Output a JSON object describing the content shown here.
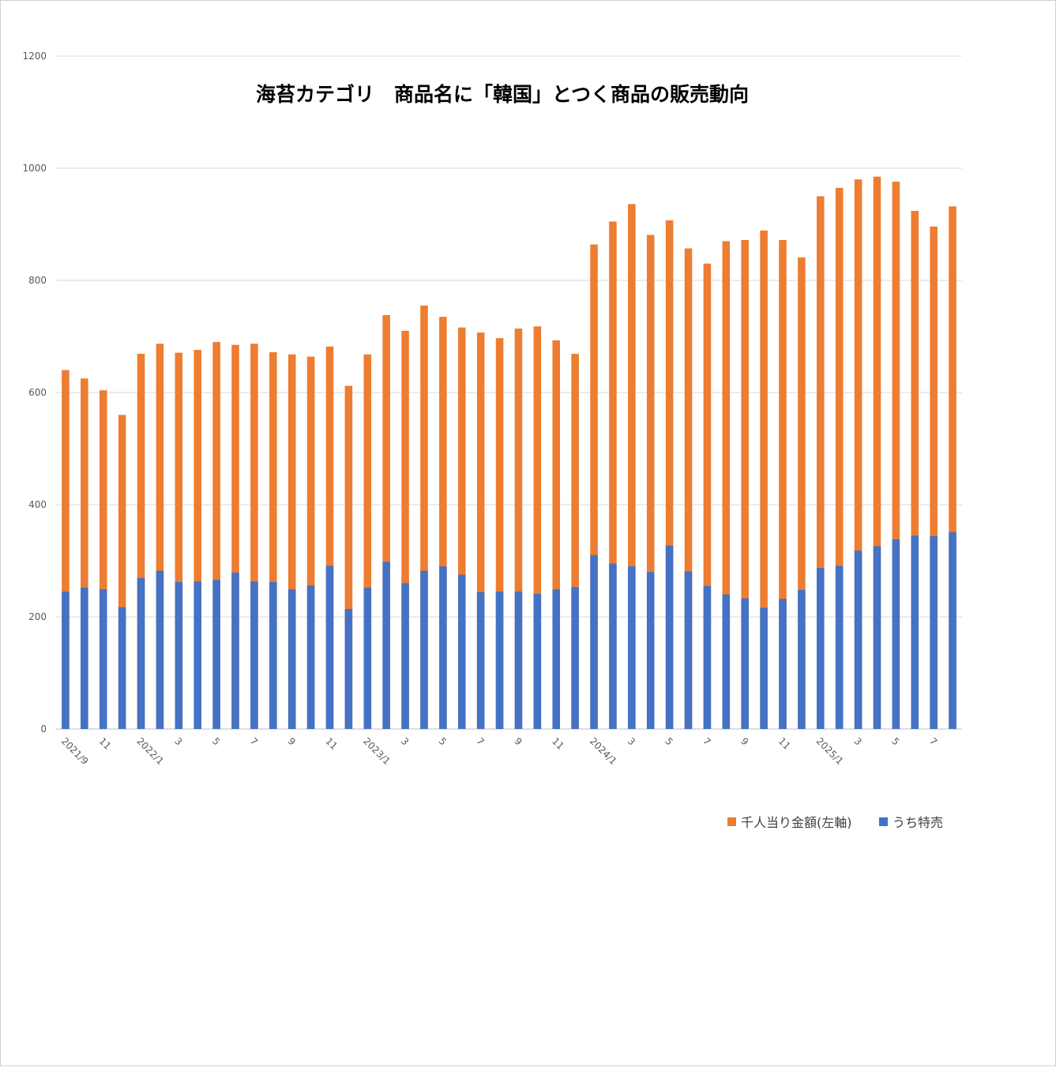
{
  "chart_data": {
    "type": "bar",
    "stacked": false,
    "overlap": true,
    "title": "海苔カテゴリ　商品名に「韓国」とつく商品の販売動向",
    "ylim": [
      0,
      1200
    ],
    "yticks": [
      0,
      200,
      400,
      600,
      800,
      1000,
      1200
    ],
    "grid": true,
    "legend_position": "bottom-right",
    "colors": {
      "total": "#ED7D31",
      "special": "#4472C4",
      "grid": "#d9d9d9",
      "axis": "#bfbfbf"
    },
    "categories": [
      "2021/9",
      "",
      "11",
      "",
      "2022/1",
      "",
      "3",
      "",
      "5",
      "",
      "7",
      "",
      "9",
      "",
      "11",
      "",
      "2023/1",
      "",
      "3",
      "",
      "5",
      "",
      "7",
      "",
      "9",
      "",
      "11",
      "",
      "2024/1",
      "",
      "3",
      "",
      "5",
      "",
      "7",
      "",
      "9",
      "",
      "11",
      "",
      "2025/1",
      "",
      "3",
      "",
      "5",
      "",
      "7",
      ""
    ],
    "series": [
      {
        "name": "千人当り金額(左軸)",
        "key": "total",
        "values": [
          640,
          625,
          604,
          560,
          669,
          687,
          671,
          676,
          690,
          685,
          687,
          672,
          668,
          664,
          682,
          612,
          668,
          738,
          710,
          755,
          735,
          716,
          707,
          697,
          714,
          718,
          693,
          669,
          864,
          905,
          936,
          881,
          907,
          857,
          830,
          870,
          872,
          889,
          872,
          841,
          950,
          965,
          980,
          985,
          976,
          924,
          896,
          932
        ]
      },
      {
        "name": "うち特売",
        "key": "special",
        "values": [
          245,
          252,
          249,
          217,
          269,
          282,
          262,
          263,
          266,
          279,
          263,
          262,
          249,
          256,
          291,
          214,
          252,
          298,
          260,
          282,
          290,
          275,
          244,
          245,
          245,
          241,
          249,
          253,
          310,
          295,
          290,
          280,
          327,
          281,
          255,
          240,
          233,
          216,
          232,
          248,
          287,
          291,
          318,
          326,
          338,
          345,
          344,
          351
        ]
      }
    ]
  }
}
